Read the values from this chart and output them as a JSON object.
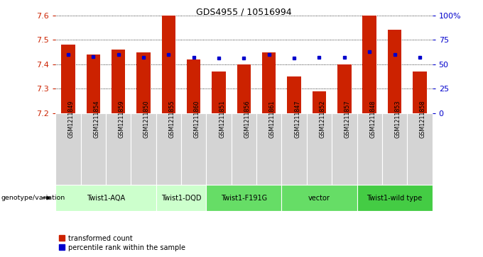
{
  "title": "GDS4955 / 10516994",
  "samples": [
    "GSM1211849",
    "GSM1211854",
    "GSM1211859",
    "GSM1211850",
    "GSM1211855",
    "GSM1211860",
    "GSM1211851",
    "GSM1211856",
    "GSM1211861",
    "GSM1211847",
    "GSM1211852",
    "GSM1211857",
    "GSM1211848",
    "GSM1211853",
    "GSM1211858"
  ],
  "bar_values": [
    7.48,
    7.44,
    7.46,
    7.45,
    7.6,
    7.42,
    7.37,
    7.4,
    7.45,
    7.35,
    7.29,
    7.4,
    7.6,
    7.54,
    7.37
  ],
  "percentile_values": [
    60,
    58,
    60,
    57,
    60,
    57,
    56,
    56,
    60,
    56,
    57,
    57,
    63,
    60,
    57
  ],
  "ylim_left": [
    7.2,
    7.6
  ],
  "ylim_right": [
    0,
    100
  ],
  "bar_color": "#cc2200",
  "percentile_color": "#0000cc",
  "bar_bottom": 7.2,
  "groups": [
    {
      "label": "Twist1-AQA",
      "start": 0,
      "end": 4,
      "color": "#ccffcc"
    },
    {
      "label": "Twist1-DQD",
      "start": 4,
      "end": 6,
      "color": "#ccffcc"
    },
    {
      "label": "Twist1-F191G",
      "start": 6,
      "end": 9,
      "color": "#66dd66"
    },
    {
      "label": "vector",
      "start": 9,
      "end": 12,
      "color": "#66dd66"
    },
    {
      "label": "Twist1-wild type",
      "start": 12,
      "end": 15,
      "color": "#44cc44"
    }
  ],
  "bg_color": "#ffffff",
  "tick_color_left": "#cc2200",
  "tick_color_right": "#0000cc",
  "legend_items": [
    {
      "label": "transformed count",
      "color": "#cc2200"
    },
    {
      "label": "percentile rank within the sample",
      "color": "#0000cc"
    }
  ],
  "genotype_label": "genotype/variation",
  "cell_color": "#d4d4d4",
  "cell_edge_color": "#ffffff"
}
